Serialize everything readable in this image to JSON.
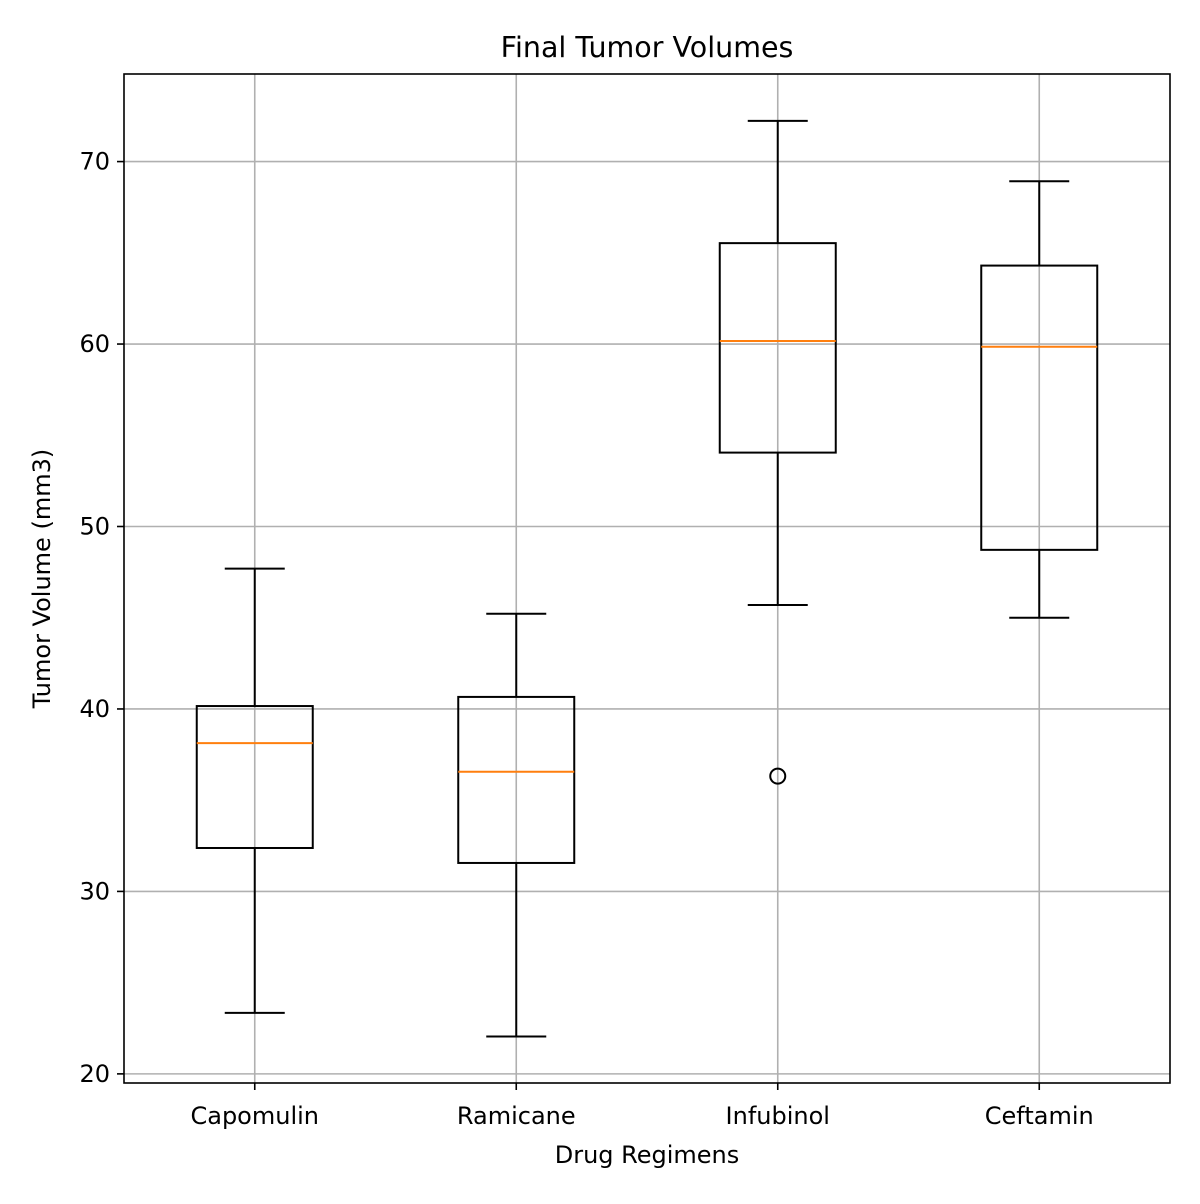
{
  "chart_data": {
    "type": "box",
    "title": "Final Tumor Volumes",
    "xlabel": "Drug Regimens",
    "ylabel": "Tumor Volume (mm3)",
    "ylim": [
      19.5,
      74.8
    ],
    "yticks": [
      20,
      30,
      40,
      50,
      60,
      70
    ],
    "grid": true,
    "categories": [
      "Capomulin",
      "Ramicane",
      "Infubinol",
      "Ceftamin"
    ],
    "boxes": [
      {
        "name": "Capomulin",
        "whislo": 23.34,
        "q1": 32.38,
        "median": 38.13,
        "q3": 40.16,
        "whishi": 47.69,
        "fliers": []
      },
      {
        "name": "Ramicane",
        "whislo": 22.05,
        "q1": 31.56,
        "median": 36.56,
        "q3": 40.66,
        "whishi": 45.22,
        "fliers": []
      },
      {
        "name": "Infubinol",
        "whislo": 45.7,
        "q1": 54.05,
        "median": 60.17,
        "q3": 65.53,
        "whishi": 72.23,
        "fliers": [
          36.32
        ]
      },
      {
        "name": "Ceftamin",
        "whislo": 45.0,
        "q1": 48.72,
        "median": 59.85,
        "q3": 64.3,
        "whishi": 68.92,
        "fliers": []
      }
    ],
    "colors": {
      "box": "#000000",
      "median": "#ff7f0e",
      "grid": "#b0b0b0",
      "flier": "#000000"
    }
  }
}
